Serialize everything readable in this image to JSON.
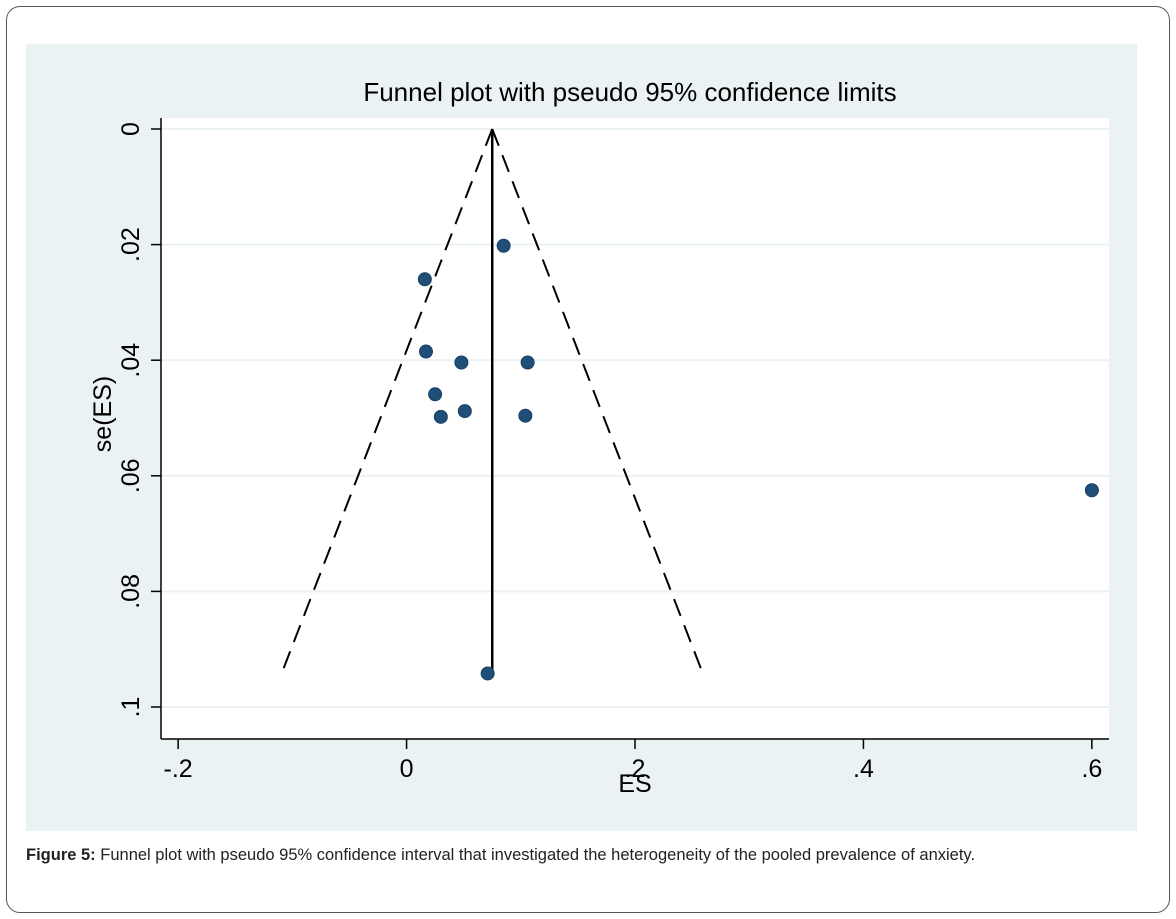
{
  "figure": {
    "caption_label": "Figure 5:",
    "caption_text": " Funnel plot with pseudo 95% confidence interval that investigated the heterogeneity of the pooled prevalence of anxiety."
  },
  "colors": {
    "plot_background": "#eaf2f3",
    "plot_area": "#ffffff",
    "gridline": "#eaf2f3",
    "marker": "#1f4e79"
  },
  "chart_data": {
    "type": "scatter",
    "title": "Funnel plot with pseudo 95% confidence limits",
    "xlabel": "ES",
    "ylabel": "se(ES)",
    "xlim": [
      -0.215,
      0.615
    ],
    "ylim": [
      0,
      0.1
    ],
    "y_reversed": true,
    "grid": true,
    "x_ticks": [
      {
        "value": -0.2,
        "label": "-.2"
      },
      {
        "value": 0,
        "label": "0"
      },
      {
        "value": 0.2,
        "label": ".2"
      },
      {
        "value": 0.4,
        "label": ".4"
      },
      {
        "value": 0.6,
        "label": ".6"
      }
    ],
    "y_ticks": [
      {
        "value": 0,
        "label": "0"
      },
      {
        "value": 0.02,
        "label": ".02"
      },
      {
        "value": 0.04,
        "label": ".04"
      },
      {
        "value": 0.06,
        "label": ".06"
      },
      {
        "value": 0.08,
        "label": ".08"
      },
      {
        "value": 0.1,
        "label": ".1"
      }
    ],
    "pooled_estimate": 0.075,
    "confidence_limits": {
      "left": [
        [
          0.075,
          0
        ],
        [
          -0.109,
          0.094
        ]
      ],
      "right": [
        [
          0.075,
          0
        ],
        [
          0.259,
          0.094
        ]
      ]
    },
    "points": [
      {
        "x": 0.085,
        "y": 0.0202
      },
      {
        "x": 0.016,
        "y": 0.026
      },
      {
        "x": 0.017,
        "y": 0.0385
      },
      {
        "x": 0.048,
        "y": 0.0404
      },
      {
        "x": 0.106,
        "y": 0.0404
      },
      {
        "x": 0.025,
        "y": 0.0459
      },
      {
        "x": 0.051,
        "y": 0.0488
      },
      {
        "x": 0.03,
        "y": 0.0498
      },
      {
        "x": 0.104,
        "y": 0.0496
      },
      {
        "x": 0.6,
        "y": 0.0625
      },
      {
        "x": 0.071,
        "y": 0.0942
      }
    ]
  }
}
